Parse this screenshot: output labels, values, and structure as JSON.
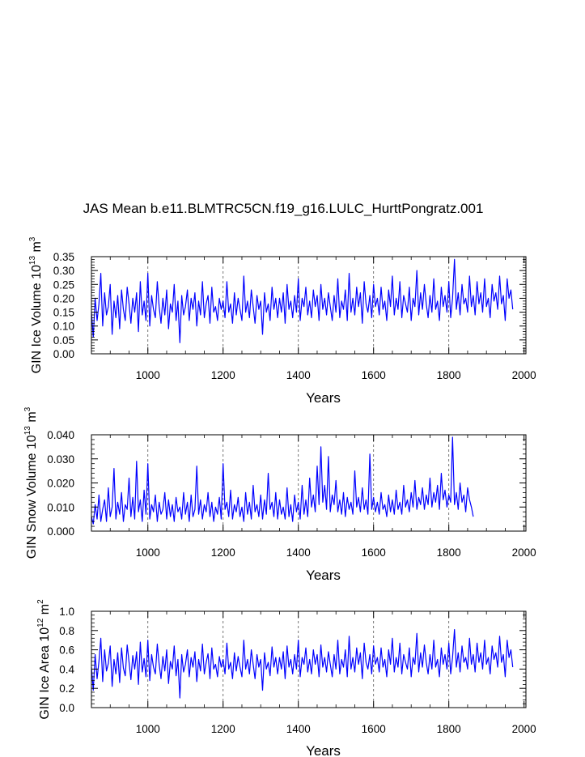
{
  "chart_data": [
    {
      "type": "line",
      "title": "JAS Mean b.e11.BLMTRC5CN.f19_g16.LULC_HurttPongratz.001",
      "ylabel": "GIN Ice Volume",
      "ylabel_unit_base": "10",
      "ylabel_unit_exp": "13",
      "ylabel_unit_rest": "m",
      "ylabel_unit_rest_exp": "3",
      "xlabel": "Years",
      "xlim": [
        850,
        2005
      ],
      "ylim": [
        0,
        0.35
      ],
      "x_ticks": [
        1000,
        1200,
        1400,
        1600,
        1800,
        2000
      ],
      "x_tick_labels": [
        "1000",
        "1200",
        "1400",
        "1600",
        "1800",
        "2000"
      ],
      "y_ticks": [
        0,
        0.05,
        0.1,
        0.15,
        0.2,
        0.25,
        0.3,
        0.35
      ],
      "y_tick_labels": [
        "0.00",
        "0.05",
        "0.10",
        "0.15",
        "0.20",
        "0.25",
        "0.30",
        "0.35"
      ],
      "vgrid": [
        1000,
        1200,
        1400,
        1600,
        1800
      ],
      "series": [
        {
          "name": "GIN Ice Volume",
          "color": "#0000ff",
          "x_start": 850,
          "x_step": 5,
          "values": [
            0.15,
            0.06,
            0.2,
            0.12,
            0.18,
            0.29,
            0.1,
            0.22,
            0.14,
            0.17,
            0.25,
            0.07,
            0.19,
            0.13,
            0.21,
            0.09,
            0.23,
            0.16,
            0.12,
            0.24,
            0.18,
            0.11,
            0.2,
            0.15,
            0.22,
            0.08,
            0.26,
            0.14,
            0.19,
            0.12,
            0.29,
            0.1,
            0.21,
            0.16,
            0.13,
            0.26,
            0.17,
            0.11,
            0.2,
            0.14,
            0.23,
            0.09,
            0.18,
            0.15,
            0.25,
            0.12,
            0.19,
            0.04,
            0.21,
            0.14,
            0.17,
            0.23,
            0.12,
            0.2,
            0.16,
            0.22,
            0.1,
            0.19,
            0.14,
            0.26,
            0.13,
            0.18,
            0.21,
            0.11,
            0.24,
            0.15,
            0.17,
            0.12,
            0.2,
            0.16,
            0.19,
            0.13,
            0.26,
            0.15,
            0.18,
            0.11,
            0.22,
            0.14,
            0.2,
            0.16,
            0.12,
            0.28,
            0.15,
            0.19,
            0.13,
            0.23,
            0.17,
            0.11,
            0.21,
            0.16,
            0.19,
            0.07,
            0.22,
            0.15,
            0.18,
            0.12,
            0.24,
            0.16,
            0.2,
            0.13,
            0.2,
            0.15,
            0.22,
            0.11,
            0.25,
            0.16,
            0.19,
            0.13,
            0.21,
            0.15,
            0.27,
            0.12,
            0.2,
            0.17,
            0.24,
            0.14,
            0.19,
            0.13,
            0.23,
            0.17,
            0.21,
            0.12,
            0.25,
            0.16,
            0.2,
            0.14,
            0.22,
            0.17,
            0.12,
            0.21,
            0.15,
            0.27,
            0.13,
            0.19,
            0.16,
            0.23,
            0.12,
            0.29,
            0.15,
            0.2,
            0.14,
            0.24,
            0.17,
            0.22,
            0.11,
            0.26,
            0.18,
            0.15,
            0.21,
            0.13,
            0.25,
            0.17,
            0.2,
            0.14,
            0.24,
            0.16,
            0.19,
            0.12,
            0.23,
            0.17,
            0.28,
            0.14,
            0.2,
            0.16,
            0.26,
            0.13,
            0.21,
            0.18,
            0.15,
            0.24,
            0.12,
            0.2,
            0.17,
            0.3,
            0.14,
            0.22,
            0.16,
            0.25,
            0.18,
            0.13,
            0.21,
            0.15,
            0.27,
            0.16,
            0.19,
            0.12,
            0.24,
            0.17,
            0.21,
            0.15,
            0.26,
            0.13,
            0.2,
            0.34,
            0.16,
            0.22,
            0.14,
            0.25,
            0.18,
            0.2,
            0.15,
            0.28,
            0.17,
            0.21,
            0.14,
            0.26,
            0.18,
            0.22,
            0.15,
            0.27,
            0.17,
            0.2,
            0.13,
            0.25,
            0.19,
            0.22,
            0.16,
            0.28,
            0.18,
            0.21,
            0.12,
            0.27,
            0.2,
            0.23,
            0.16
          ]
        }
      ]
    },
    {
      "type": "line",
      "ylabel": "GIN Snow Volume",
      "ylabel_unit_base": "10",
      "ylabel_unit_exp": "13",
      "ylabel_unit_rest": "m",
      "ylabel_unit_rest_exp": "3",
      "xlabel": "Years",
      "xlim": [
        850,
        2005
      ],
      "ylim": [
        0,
        0.04
      ],
      "x_ticks": [
        1000,
        1200,
        1400,
        1600,
        1800,
        2000
      ],
      "x_tick_labels": [
        "1000",
        "1200",
        "1400",
        "1600",
        "1800",
        "2000"
      ],
      "y_ticks": [
        0,
        0.01,
        0.02,
        0.03,
        0.04
      ],
      "y_tick_labels": [
        "0.000",
        "0.010",
        "0.020",
        "0.030",
        "0.040"
      ],
      "vgrid": [
        1000,
        1200,
        1400,
        1600,
        1800
      ],
      "series": [
        {
          "name": "GIN Snow Volume",
          "color": "#0000ff",
          "x_start": 850,
          "x_step": 5,
          "values": [
            0.006,
            0.003,
            0.011,
            0.005,
            0.015,
            0.004,
            0.009,
            0.013,
            0.004,
            0.018,
            0.006,
            0.01,
            0.026,
            0.005,
            0.012,
            0.007,
            0.016,
            0.004,
            0.011,
            0.009,
            0.022,
            0.006,
            0.014,
            0.005,
            0.029,
            0.008,
            0.013,
            0.004,
            0.017,
            0.007,
            0.028,
            0.005,
            0.011,
            0.008,
            0.015,
            0.004,
            0.012,
            0.007,
            0.009,
            0.016,
            0.005,
            0.013,
            0.006,
            0.011,
            0.004,
            0.014,
            0.008,
            0.01,
            0.005,
            0.016,
            0.007,
            0.012,
            0.004,
            0.015,
            0.006,
            0.009,
            0.027,
            0.007,
            0.013,
            0.005,
            0.011,
            0.008,
            0.016,
            0.006,
            0.012,
            0.004,
            0.01,
            0.007,
            0.014,
            0.005,
            0.028,
            0.009,
            0.012,
            0.006,
            0.017,
            0.005,
            0.011,
            0.008,
            0.014,
            0.006,
            0.01,
            0.004,
            0.016,
            0.007,
            0.012,
            0.005,
            0.019,
            0.008,
            0.011,
            0.006,
            0.015,
            0.005,
            0.013,
            0.007,
            0.024,
            0.009,
            0.012,
            0.006,
            0.016,
            0.005,
            0.013,
            0.007,
            0.01,
            0.005,
            0.018,
            0.006,
            0.011,
            0.004,
            0.015,
            0.008,
            0.012,
            0.005,
            0.019,
            0.007,
            0.013,
            0.006,
            0.022,
            0.01,
            0.015,
            0.008,
            0.027,
            0.011,
            0.035,
            0.012,
            0.019,
            0.009,
            0.031,
            0.008,
            0.015,
            0.011,
            0.021,
            0.008,
            0.013,
            0.007,
            0.016,
            0.006,
            0.014,
            0.009,
            0.012,
            0.007,
            0.025,
            0.01,
            0.014,
            0.008,
            0.018,
            0.009,
            0.013,
            0.007,
            0.032,
            0.009,
            0.014,
            0.008,
            0.012,
            0.007,
            0.016,
            0.009,
            0.011,
            0.006,
            0.015,
            0.008,
            0.013,
            0.007,
            0.017,
            0.009,
            0.012,
            0.007,
            0.019,
            0.01,
            0.013,
            0.008,
            0.016,
            0.01,
            0.021,
            0.009,
            0.014,
            0.011,
            0.018,
            0.009,
            0.015,
            0.011,
            0.022,
            0.01,
            0.016,
            0.012,
            0.019,
            0.009,
            0.024,
            0.013,
            0.017,
            0.01,
            0.015,
            0.012,
            0.039,
            0.011,
            0.016,
            0.009,
            0.02,
            0.012,
            0.015,
            0.008,
            0.018,
            0.013,
            0.01,
            0.006
          ]
        }
      ]
    },
    {
      "type": "line",
      "ylabel": "GIN Ice Area",
      "ylabel_unit_base": "10",
      "ylabel_unit_exp": "12",
      "ylabel_unit_rest": "m",
      "ylabel_unit_rest_exp": "2",
      "xlabel": "Years",
      "xlim": [
        850,
        2005
      ],
      "ylim": [
        0,
        1.0
      ],
      "x_ticks": [
        1000,
        1200,
        1400,
        1600,
        1800,
        2000
      ],
      "x_tick_labels": [
        "1000",
        "1200",
        "1400",
        "1600",
        "1800",
        "2000"
      ],
      "y_ticks": [
        0,
        0.2,
        0.4,
        0.6,
        0.8,
        1.0
      ],
      "y_tick_labels": [
        "0.0",
        "0.2",
        "0.4",
        "0.6",
        "0.8",
        "1.0"
      ],
      "vgrid": [
        1000,
        1200,
        1400,
        1600,
        1800
      ],
      "series": [
        {
          "name": "GIN Ice Area",
          "color": "#0000ff",
          "x_start": 850,
          "x_step": 5,
          "values": [
            0.42,
            0.18,
            0.55,
            0.3,
            0.48,
            0.72,
            0.27,
            0.6,
            0.38,
            0.46,
            0.64,
            0.22,
            0.5,
            0.35,
            0.57,
            0.26,
            0.62,
            0.41,
            0.33,
            0.65,
            0.47,
            0.29,
            0.54,
            0.4,
            0.58,
            0.24,
            0.68,
            0.37,
            0.51,
            0.32,
            0.7,
            0.28,
            0.55,
            0.42,
            0.35,
            0.66,
            0.45,
            0.3,
            0.53,
            0.38,
            0.6,
            0.25,
            0.48,
            0.4,
            0.64,
            0.33,
            0.5,
            0.1,
            0.55,
            0.37,
            0.45,
            0.6,
            0.32,
            0.52,
            0.42,
            0.58,
            0.27,
            0.5,
            0.38,
            0.66,
            0.35,
            0.47,
            0.56,
            0.3,
            0.62,
            0.4,
            0.45,
            0.32,
            0.53,
            0.42,
            0.5,
            0.35,
            0.67,
            0.4,
            0.47,
            0.3,
            0.57,
            0.38,
            0.53,
            0.42,
            0.32,
            0.7,
            0.4,
            0.5,
            0.35,
            0.6,
            0.45,
            0.3,
            0.55,
            0.42,
            0.5,
            0.18,
            0.57,
            0.4,
            0.47,
            0.33,
            0.63,
            0.42,
            0.52,
            0.35,
            0.52,
            0.4,
            0.58,
            0.3,
            0.64,
            0.42,
            0.5,
            0.35,
            0.55,
            0.4,
            0.7,
            0.32,
            0.52,
            0.45,
            0.62,
            0.37,
            0.5,
            0.35,
            0.6,
            0.45,
            0.55,
            0.32,
            0.65,
            0.42,
            0.52,
            0.37,
            0.58,
            0.45,
            0.32,
            0.55,
            0.4,
            0.7,
            0.35,
            0.5,
            0.42,
            0.6,
            0.32,
            0.74,
            0.4,
            0.52,
            0.37,
            0.62,
            0.45,
            0.57,
            0.3,
            0.67,
            0.47,
            0.4,
            0.55,
            0.35,
            0.64,
            0.45,
            0.52,
            0.37,
            0.62,
            0.42,
            0.5,
            0.32,
            0.6,
            0.45,
            0.72,
            0.37,
            0.52,
            0.42,
            0.67,
            0.35,
            0.55,
            0.47,
            0.4,
            0.62,
            0.32,
            0.52,
            0.45,
            0.77,
            0.37,
            0.57,
            0.42,
            0.65,
            0.47,
            0.35,
            0.55,
            0.4,
            0.7,
            0.42,
            0.5,
            0.32,
            0.62,
            0.45,
            0.55,
            0.4,
            0.67,
            0.35,
            0.52,
            0.81,
            0.42,
            0.57,
            0.37,
            0.64,
            0.47,
            0.52,
            0.4,
            0.72,
            0.45,
            0.55,
            0.37,
            0.67,
            0.47,
            0.57,
            0.4,
            0.7,
            0.45,
            0.52,
            0.35,
            0.64,
            0.5,
            0.57,
            0.42,
            0.74,
            0.47,
            0.55,
            0.32,
            0.7,
            0.52,
            0.6,
            0.42
          ]
        }
      ]
    }
  ]
}
